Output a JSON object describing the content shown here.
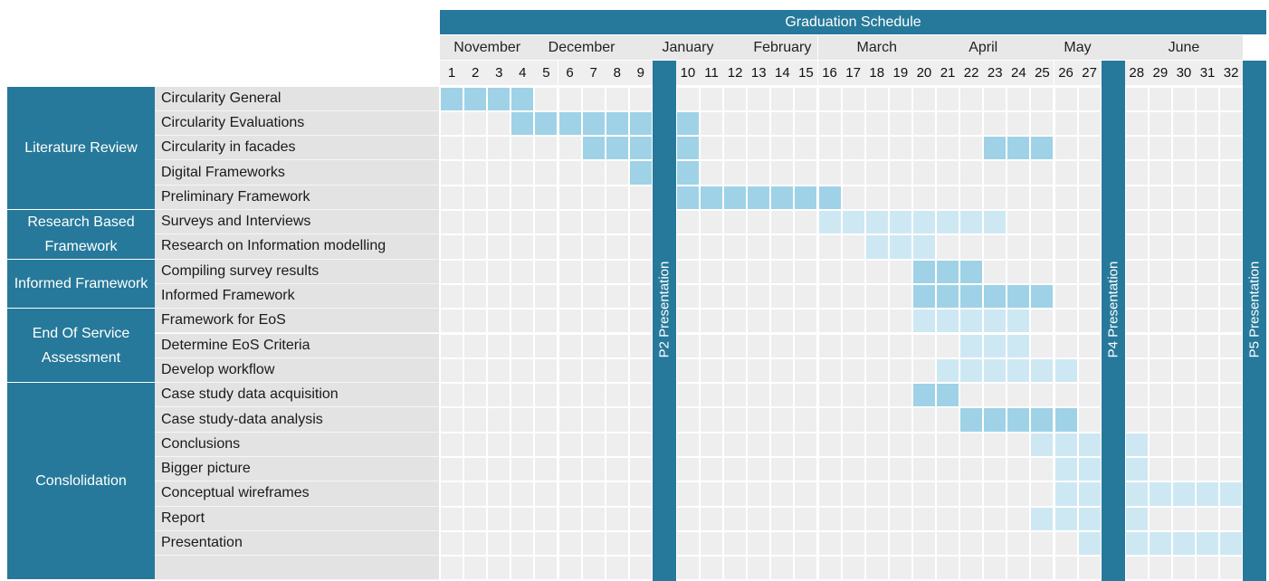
{
  "title": "Graduation Schedule",
  "months": [
    "November",
    "December",
    "January",
    "February",
    "March",
    "April",
    "May",
    "June"
  ],
  "weeks": [
    "1",
    "2",
    "3",
    "4",
    "5",
    "6",
    "7",
    "8",
    "9",
    "10",
    "11",
    "12",
    "13",
    "14",
    "15",
    "16",
    "17",
    "18",
    "19",
    "20",
    "21",
    "22",
    "23",
    "24",
    "25",
    "26",
    "27",
    "28",
    "29",
    "30",
    "31",
    "32"
  ],
  "groups": [
    {
      "label": "Literature Review",
      "tasks": 5
    },
    {
      "label": "Research Based Framework",
      "tasks": 2
    },
    {
      "label": "Informed Framework",
      "tasks": 2
    },
    {
      "label": "End Of Service Assessment",
      "tasks": 3
    },
    {
      "label": "Conslolidation",
      "tasks": 8
    }
  ],
  "tasks": [
    {
      "name": "Circularity General",
      "dark": [
        [
          1,
          4
        ]
      ],
      "light": []
    },
    {
      "name": "Circularity Evaluations",
      "dark": [
        [
          4,
          10
        ]
      ],
      "light": []
    },
    {
      "name": "Circularity in facades",
      "dark": [
        [
          7,
          10
        ],
        [
          23,
          25
        ]
      ],
      "light": []
    },
    {
      "name": "Digital Frameworks",
      "dark": [
        [
          9,
          10
        ]
      ],
      "light": []
    },
    {
      "name": "Preliminary Framework",
      "dark": [
        [
          10,
          16
        ]
      ],
      "light": []
    },
    {
      "name": "Surveys and Interviews",
      "dark": [],
      "light": [
        [
          16,
          23
        ]
      ]
    },
    {
      "name": "Research on Information modelling",
      "dark": [],
      "light": [
        [
          18,
          20
        ]
      ]
    },
    {
      "name": "Compiling survey results",
      "dark": [
        [
          20,
          22
        ]
      ],
      "light": []
    },
    {
      "name": "Informed Framework",
      "dark": [
        [
          20,
          25
        ]
      ],
      "light": []
    },
    {
      "name": "Framework for EoS",
      "dark": [],
      "light": [
        [
          20,
          24
        ]
      ]
    },
    {
      "name": "Determine EoS Criteria",
      "dark": [],
      "light": [
        [
          22,
          24
        ]
      ]
    },
    {
      "name": "Develop workflow",
      "dark": [],
      "light": [
        [
          21,
          26
        ]
      ]
    },
    {
      "name": "Case study data acquisition",
      "dark": [
        [
          20,
          21
        ]
      ],
      "light": []
    },
    {
      "name": "Case study-data analysis",
      "dark": [
        [
          22,
          26
        ]
      ],
      "light": []
    },
    {
      "name": "Conclusions",
      "dark": [],
      "light": [
        [
          25,
          28
        ]
      ]
    },
    {
      "name": "Bigger picture",
      "dark": [],
      "light": [
        [
          26,
          28
        ]
      ]
    },
    {
      "name": "Conceptual wireframes",
      "dark": [],
      "light": [
        [
          26,
          32
        ]
      ]
    },
    {
      "name": "Report",
      "dark": [],
      "light": [
        [
          25,
          28
        ]
      ]
    },
    {
      "name": "Presentation",
      "dark": [],
      "light": [
        [
          27,
          32
        ]
      ]
    },
    {
      "name": "",
      "dark": [],
      "light": []
    }
  ],
  "milestones": [
    {
      "label": "P2 Presentation",
      "after_week": 9
    },
    {
      "label": "P4 Presentation",
      "after_week": 27
    },
    {
      "label": "P5 Presentation",
      "after_week": 32
    }
  ],
  "colors": {
    "accent": "#26799a",
    "bar_dark": "#9fd2e6",
    "bar_light": "#cde8f3",
    "empty": "#eeeeee"
  }
}
